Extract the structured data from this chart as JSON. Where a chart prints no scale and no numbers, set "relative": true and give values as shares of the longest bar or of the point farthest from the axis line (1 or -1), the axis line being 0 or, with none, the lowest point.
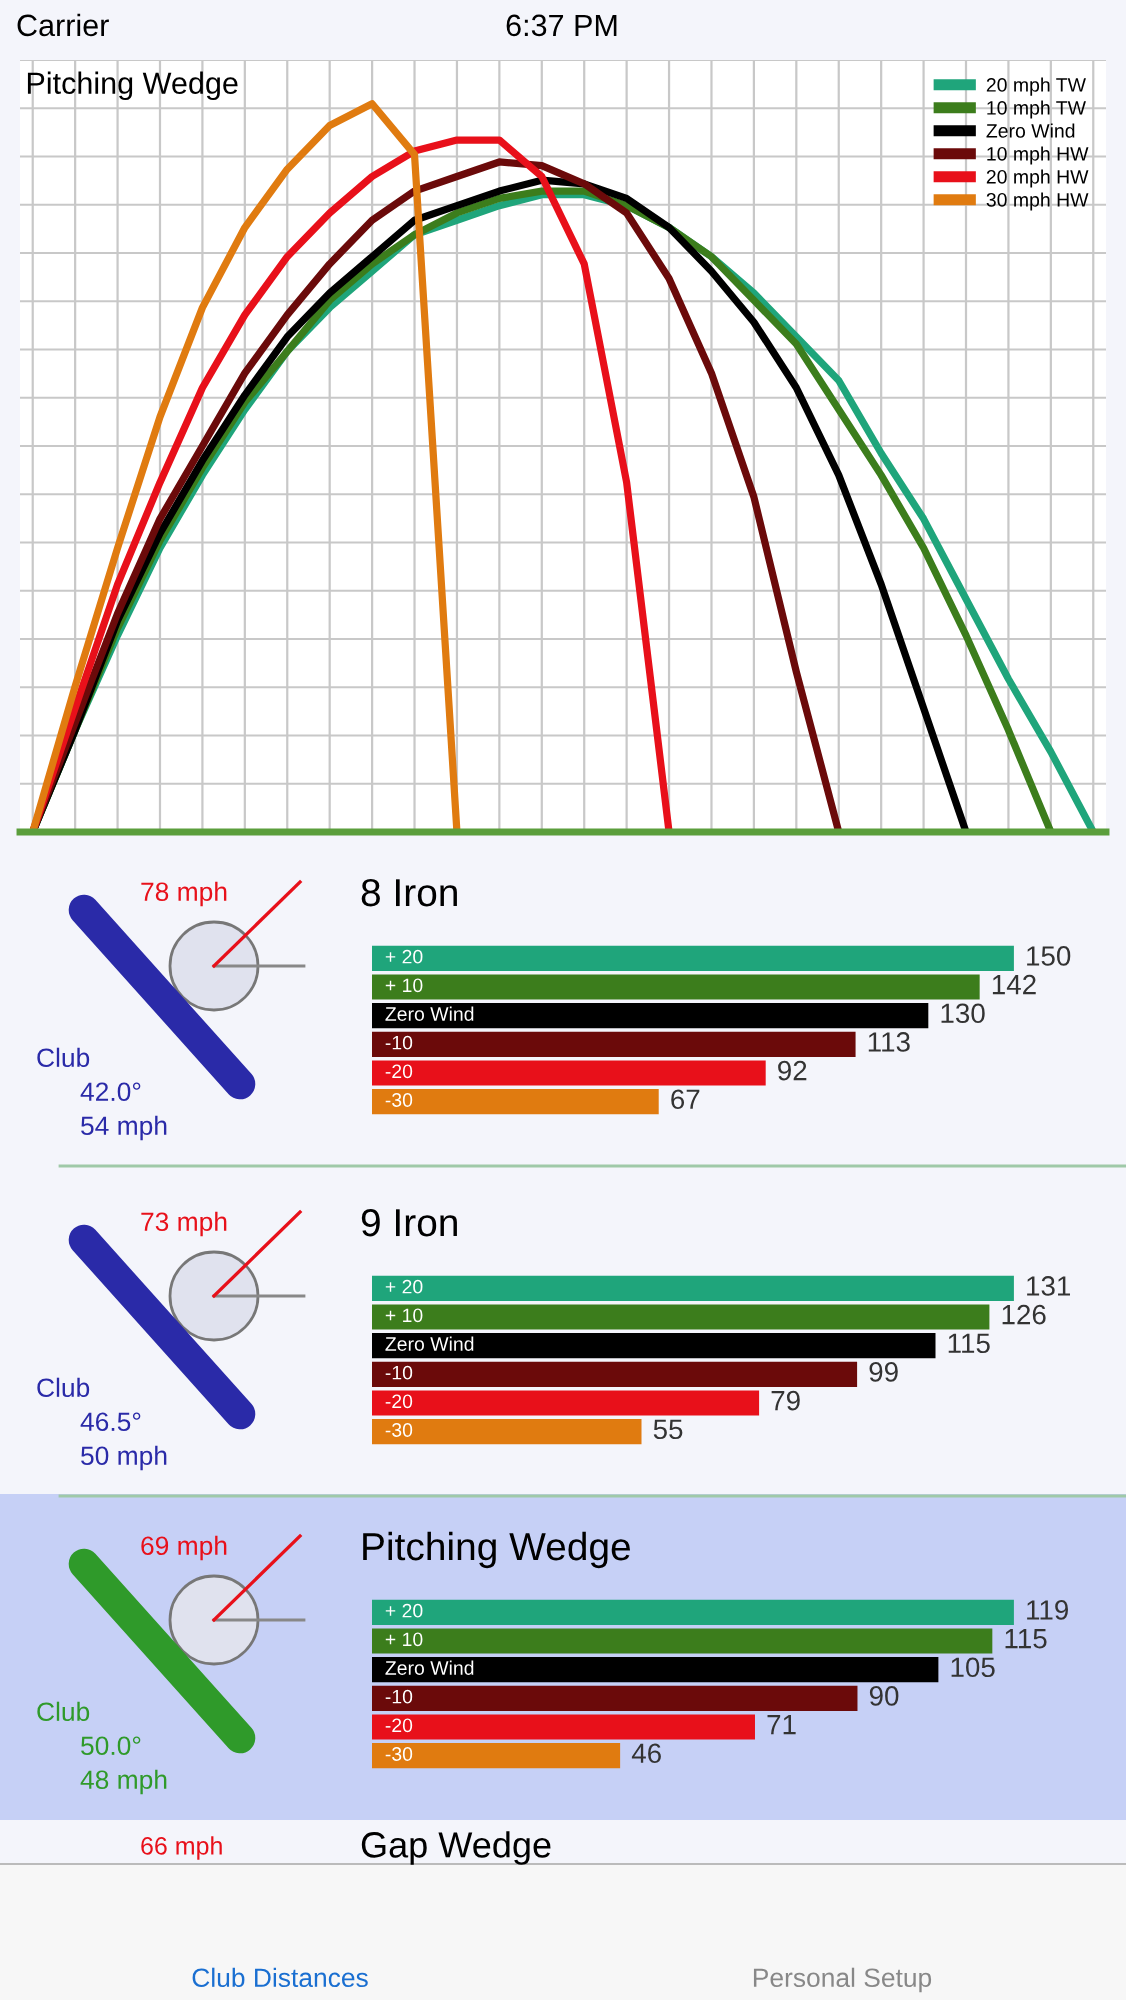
{
  "chart_data": [
    {
      "type": "line",
      "title": "Pitching Wedge",
      "relative": true,
      "grid": true,
      "legend": "top right",
      "categories": [
        null,
        null,
        null,
        null,
        null,
        null,
        null,
        null,
        null,
        null,
        null,
        null,
        null,
        null,
        null,
        null,
        null,
        null,
        null,
        null,
        null,
        null,
        null,
        null,
        null,
        null
      ],
      "series": [
        {
          "name": "20 mph TW",
          "color": "#1fa57b",
          "values": [
            0,
            0.14,
            0.27,
            0.39,
            0.49,
            0.58,
            0.66,
            0.72,
            0.77,
            0.82,
            0.84,
            0.86,
            0.875,
            0.875,
            0.86,
            0.83,
            0.79,
            0.74,
            0.68,
            0.62,
            0.52,
            0.43,
            0.32,
            0.21,
            0.11,
            0
          ]
        },
        {
          "name": "10 mph TW",
          "color": "#3c7d1c",
          "values": [
            0,
            0.14,
            0.28,
            0.4,
            0.5,
            0.59,
            0.66,
            0.73,
            0.78,
            0.82,
            0.85,
            0.87,
            0.88,
            0.88,
            0.86,
            0.83,
            0.79,
            0.73,
            0.67,
            0.58,
            0.49,
            0.39,
            0.27,
            0.14,
            0,
            null
          ]
        },
        {
          "name": "Zero Wind",
          "color": "#000000",
          "values": [
            0,
            0.14,
            0.29,
            0.41,
            0.51,
            0.6,
            0.68,
            0.74,
            0.79,
            0.84,
            0.86,
            0.88,
            0.895,
            0.89,
            0.87,
            0.83,
            0.77,
            0.7,
            0.61,
            0.49,
            0.34,
            0.17,
            0,
            null,
            null,
            null
          ]
        },
        {
          "name": "10 mph HW",
          "color": "#6b0a0a",
          "values": [
            0,
            0.15,
            0.3,
            0.43,
            0.53,
            0.63,
            0.71,
            0.78,
            0.84,
            0.88,
            0.9,
            0.92,
            0.915,
            0.89,
            0.85,
            0.76,
            0.63,
            0.46,
            0.22,
            0,
            null,
            null,
            null,
            null,
            null,
            null
          ]
        },
        {
          "name": "20 mph HW",
          "color": "#e8101a",
          "values": [
            0,
            0.17,
            0.34,
            0.48,
            0.61,
            0.71,
            0.79,
            0.85,
            0.9,
            0.935,
            0.95,
            0.95,
            0.9,
            0.78,
            0.48,
            0,
            null,
            null,
            null,
            null,
            null,
            null,
            null,
            null,
            null,
            null
          ]
        },
        {
          "name": "30 mph HW",
          "color": "#e07b10",
          "values": [
            0,
            0.2,
            0.39,
            0.57,
            0.72,
            0.83,
            0.91,
            0.97,
            1.0,
            0.93,
            0,
            null,
            null,
            null,
            null,
            null,
            null,
            null,
            null,
            null,
            null,
            null,
            null,
            null,
            null,
            null
          ]
        }
      ]
    },
    {
      "type": "bar",
      "orientation": "horizontal",
      "title": "8 Iron",
      "data_labels": true,
      "categories": [
        "+ 20",
        "+ 10",
        "Zero Wind",
        "-10",
        "-20",
        "-30"
      ],
      "values": [
        150,
        142,
        130,
        113,
        92,
        67
      ],
      "colors": [
        "#1fa57b",
        "#3c7d1c",
        "#000000",
        "#6b0a0a",
        "#e8101a",
        "#e07b10"
      ],
      "annotations": [
        "78 mph",
        "Club",
        "42.0°",
        "54 mph"
      ]
    },
    {
      "type": "bar",
      "orientation": "horizontal",
      "title": "9 Iron",
      "data_labels": true,
      "categories": [
        "+ 20",
        "+ 10",
        "Zero Wind",
        "-10",
        "-20",
        "-30"
      ],
      "values": [
        131,
        126,
        115,
        99,
        79,
        55
      ],
      "colors": [
        "#1fa57b",
        "#3c7d1c",
        "#000000",
        "#6b0a0a",
        "#e8101a",
        "#e07b10"
      ],
      "annotations": [
        "73 mph",
        "Club",
        "46.5°",
        "50 mph"
      ]
    },
    {
      "type": "bar",
      "orientation": "horizontal",
      "title": "Pitching Wedge",
      "data_labels": true,
      "categories": [
        "+ 20",
        "+ 10",
        "Zero Wind",
        "-10",
        "-20",
        "-30"
      ],
      "values": [
        119,
        115,
        105,
        90,
        71,
        46
      ],
      "colors": [
        "#1fa57b",
        "#3c7d1c",
        "#000000",
        "#6b0a0a",
        "#e8101a",
        "#e07b10"
      ],
      "annotations": [
        "69 mph",
        "Club",
        "50.0°",
        "48 mph"
      ]
    },
    {
      "type": "other",
      "annotations": [
        "Carrier",
        "6:37 PM",
        "66 mph",
        "Gap Wedge",
        "Club Distances",
        "Personal Setup"
      ]
    }
  ]
}
